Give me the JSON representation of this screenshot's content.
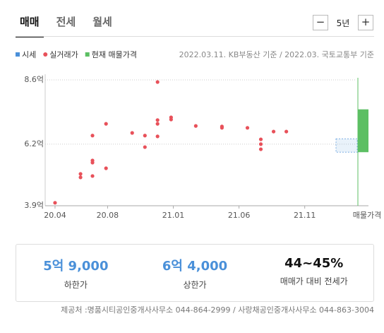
{
  "tabs": [
    "매매",
    "전세",
    "월세"
  ],
  "period": {
    "minus": "−",
    "label": "5년",
    "plus": "+"
  },
  "source_note": "2022.03.11. KB부동산 기준 / 2022.03. 국토교통부 기준",
  "chart_data": {
    "type": "scatter",
    "series": [
      {
        "name": "시세",
        "color": "#4a90d9",
        "range": [
          5.9,
          6.4
        ]
      },
      {
        "name": "실거래가",
        "color": "#e8515a",
        "x": [
          4.0,
          5.94,
          5.94,
          6.85,
          6.85,
          6.85,
          6.85,
          7.88,
          7.88,
          9.87,
          10.84,
          10.84,
          11.8,
          11.8,
          11.8,
          11.8,
          12.83,
          12.83,
          14.71,
          16.7,
          16.7,
          18.64,
          19.66,
          19.66,
          19.66,
          20.63,
          21.6
        ],
        "values": [
          4.01,
          5.09,
          4.96,
          6.52,
          5.59,
          5.51,
          5.01,
          6.96,
          5.3,
          6.62,
          6.52,
          6.09,
          8.52,
          7.1,
          6.96,
          6.49,
          7.2,
          7.12,
          6.88,
          6.86,
          6.81,
          6.81,
          6.38,
          6.2,
          6.01,
          6.67,
          6.67
        ]
      },
      {
        "name": "현재 매물가격",
        "color": "#5cbf63",
        "range": [
          5.9,
          7.5
        ]
      }
    ],
    "xlim": [
      3.25,
      26.4
    ],
    "xticks": [
      {
        "value": 4,
        "label": "20.04"
      },
      {
        "value": 8,
        "label": "20.08"
      },
      {
        "value": 13,
        "label": "21.01"
      },
      {
        "value": 18,
        "label": "21.06"
      },
      {
        "value": 23,
        "label": "21.11"
      }
    ],
    "listing_label": "매물가격",
    "ylim": [
      3.9,
      8.6
    ],
    "yticks": [
      {
        "value": 3.9,
        "label": "3.9억"
      },
      {
        "value": 6.2,
        "label": "6.2억"
      },
      {
        "value": 8.6,
        "label": "8.6억"
      }
    ],
    "grid": true
  },
  "summary": [
    {
      "value": "5억 9,000",
      "label": "하한가"
    },
    {
      "value": "6억 4,000",
      "label": "상한가"
    },
    {
      "value": "44~45%",
      "label": "매매가 대비 전세가"
    }
  ],
  "footer": "제공처 :명품시티공인중개사사무소 044-864-2999 / 사랑채공인중개사사무소 044-863-3004"
}
